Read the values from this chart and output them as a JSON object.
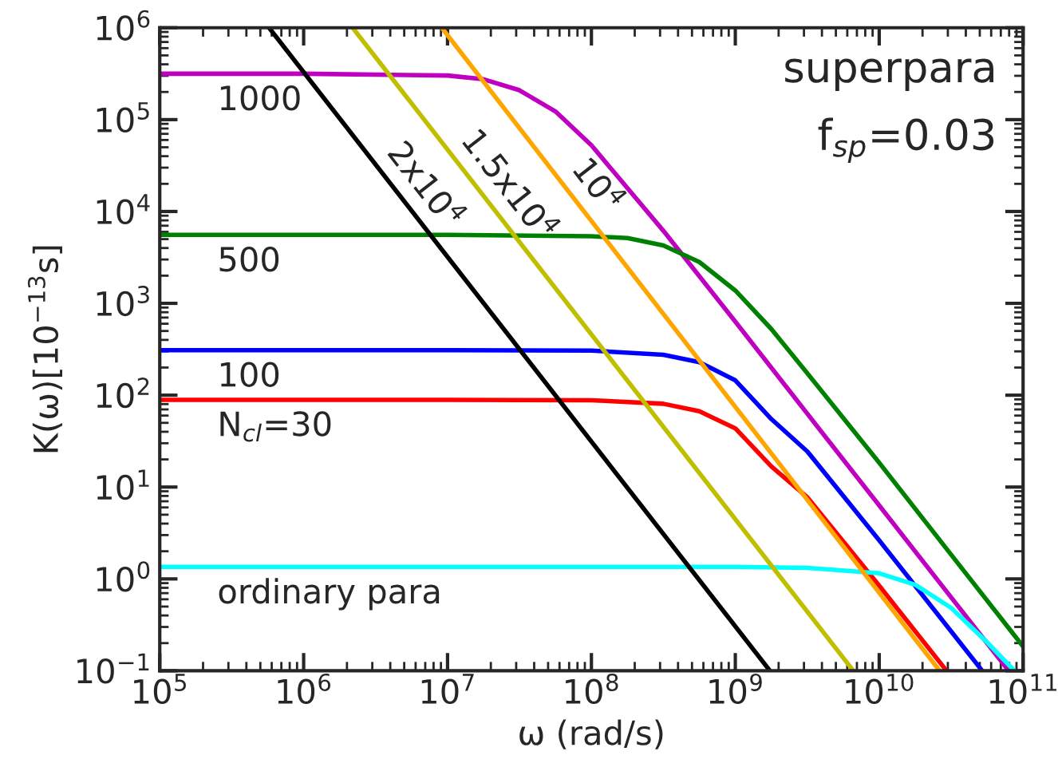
{
  "chart_data": {
    "type": "line",
    "xlabel": "ω (rad/s)",
    "ylabel": "K(ω)[10$^{−13}$s]",
    "log": "xy",
    "grid": false,
    "legend": false,
    "marker": "none",
    "line_style": "solid",
    "xlim": [
      100000.0,
      100000000000.0
    ],
    "ylim": [
      0.1,
      1000000.0
    ],
    "xticks": [
      {
        "value": 100000.0,
        "label": "10$^{5}$"
      },
      {
        "value": 1000000.0,
        "label": "10$^{6}$"
      },
      {
        "value": 10000000.0,
        "label": "10$^{7}$"
      },
      {
        "value": 100000000.0,
        "label": "10$^{8}$"
      },
      {
        "value": 1000000000.0,
        "label": "10$^{9}$"
      },
      {
        "value": 10000000000.0,
        "label": "10$^{10}$"
      },
      {
        "value": 100000000000.0,
        "label": "10$^{11}$"
      }
    ],
    "yticks": [
      {
        "value": 0.1,
        "label": "10$^{−1}$"
      },
      {
        "value": 1,
        "label": "10$^{0}$"
      },
      {
        "value": 10,
        "label": "10$^{1}$"
      },
      {
        "value": 100,
        "label": "10$^{2}$"
      },
      {
        "value": 1000,
        "label": "10$^{3}$"
      },
      {
        "value": 10000,
        "label": "10$^{4}$"
      },
      {
        "value": 100000,
        "label": "10$^{5}$"
      },
      {
        "value": 1000000,
        "label": "10$^{6}$"
      }
    ],
    "series": [
      {
        "name": "1000",
        "color": "#c000c0",
        "x": [
          100000.0,
          1000000.0,
          10000000.0,
          17800000.0,
          31600000.0,
          56200000.0,
          100000000.0,
          316000000.0,
          1000000000.0,
          3160000000.0,
          10000000000.0,
          31600000000.0,
          79400000000.0
        ],
        "values": [
          316000,
          316000,
          302000,
          275000,
          209000,
          123000,
          52500,
          6170,
          631,
          63.1,
          6.31,
          0.631,
          0.1
        ]
      },
      {
        "name": "500",
        "color": "#008000",
        "x": [
          100000.0,
          1000000.0,
          10000000.0,
          100000000.0,
          178000000.0,
          316000000.0,
          562000000.0,
          1000000000.0,
          1780000000.0,
          3160000000.0,
          10000000000.0,
          31600000000.0,
          100000000000.0
        ],
        "values": [
          5560,
          5560,
          5560,
          5370,
          5130,
          4270,
          2820,
          1380,
          525,
          174,
          18.4,
          1.84,
          0.184
        ]
      },
      {
        "name": "100",
        "color": "#0000ff",
        "x": [
          100000.0,
          1000000.0,
          10000000.0,
          100000000.0,
          316000000.0,
          562000000.0,
          1000000000.0,
          1780000000.0,
          3160000000.0,
          10000000000.0,
          31600000000.0,
          52000000000.0
        ],
        "values": [
          309,
          309,
          309,
          306,
          275,
          229,
          145,
          55,
          24.5,
          2.63,
          0.269,
          0.1
        ]
      },
      {
        "name": "N$_{cl}$=30",
        "color": "#ff0000",
        "x": [
          100000.0,
          1000000.0,
          10000000.0,
          100000000.0,
          316000000.0,
          562000000.0,
          1000000000.0,
          1780000000.0,
          3160000000.0,
          10000000000.0,
          29400000000.0
        ],
        "values": [
          89.1,
          89.1,
          89.1,
          88.1,
          80.7,
          67.0,
          43.6,
          16.8,
          7.76,
          0.843,
          0.1
        ]
      },
      {
        "name": "ordinary para",
        "color": "#00ffff",
        "x": [
          100000.0,
          1000000.0,
          10000000.0,
          100000000.0,
          1000000000.0,
          3160000000.0,
          10000000000.0,
          17800000000.0,
          31600000000.0,
          56200000000.0,
          87100000000.0
        ],
        "values": [
          1.35,
          1.35,
          1.35,
          1.35,
          1.35,
          1.32,
          1.15,
          0.863,
          0.485,
          0.204,
          0.1
        ]
      },
      {
        "name": "2x10$^{4}$",
        "color": "#000000",
        "x": [
          575000.0,
          1740000000.0
        ],
        "values": [
          1000000,
          0.1
        ]
      },
      {
        "name": "1.5x10$^{4}$",
        "color": "#bfbf00",
        "x": [
          2190000.0,
          6610000000.0
        ],
        "values": [
          1000000,
          0.1
        ]
      },
      {
        "name": "10$^{4}$",
        "color": "#ffa500",
        "x": [
          9120000.0,
          26300000000.0
        ],
        "values": [
          1000000,
          0.1
        ]
      }
    ],
    "annotations": [
      "superpara",
      "f$_{sp}$=0.03"
    ]
  }
}
